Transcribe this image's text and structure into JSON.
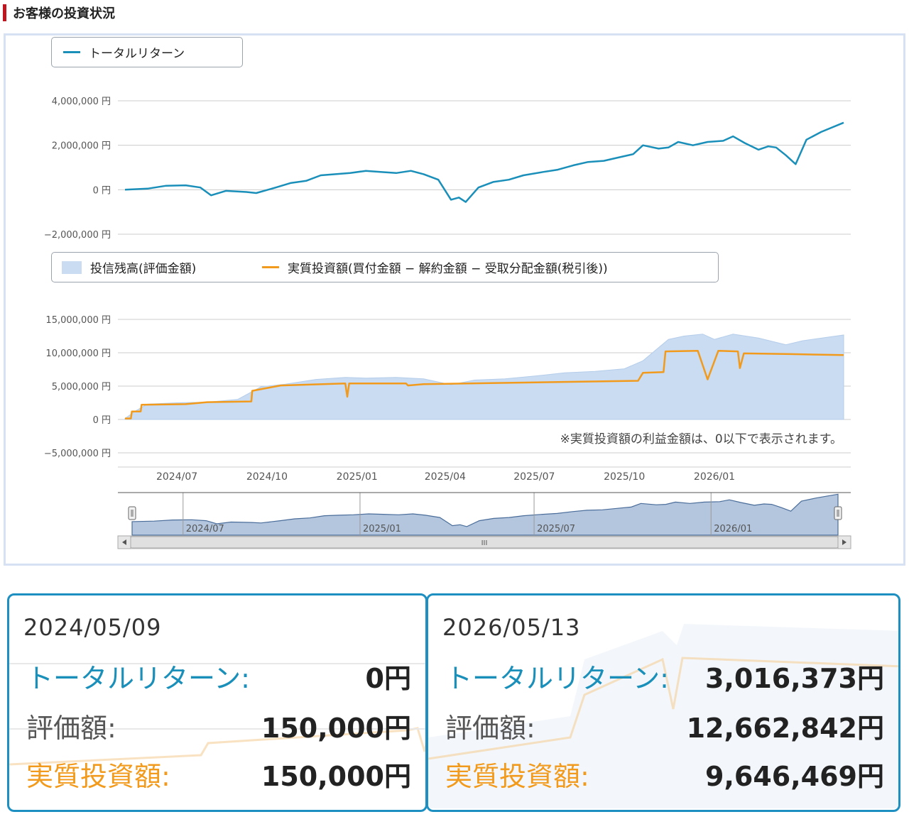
{
  "heading": {
    "title": "お客様の投資状況"
  },
  "colors": {
    "total_return": "#1a8fb9",
    "balance_fill": "#c9dcf2",
    "invested": "#f29a1c",
    "card_border": "#1d8fc0",
    "accent_red": "#c0141e"
  },
  "chart_data": [
    {
      "type": "line",
      "title": "",
      "legend": [
        "トータルリターン"
      ],
      "y_ticks": [
        "4,000,000 円",
        "2,000,000 円",
        "0 円",
        "−2,000,000 円"
      ],
      "ylim": [
        -2000000,
        4000000
      ],
      "x_range": [
        "2024-05-09",
        "2026-05-13"
      ],
      "series": [
        {
          "name": "トータルリターン",
          "points": [
            [
              "2024-05-09",
              0
            ],
            [
              "2024-06-01",
              50000
            ],
            [
              "2024-06-20",
              180000
            ],
            [
              "2024-07-10",
              200000
            ],
            [
              "2024-07-25",
              100000
            ],
            [
              "2024-08-05",
              -250000
            ],
            [
              "2024-08-20",
              -50000
            ],
            [
              "2024-09-10",
              -100000
            ],
            [
              "2024-09-20",
              -150000
            ],
            [
              "2024-10-10",
              100000
            ],
            [
              "2024-10-25",
              300000
            ],
            [
              "2024-11-10",
              400000
            ],
            [
              "2024-11-25",
              650000
            ],
            [
              "2024-12-10",
              700000
            ],
            [
              "2024-12-25",
              750000
            ],
            [
              "2025-01-10",
              850000
            ],
            [
              "2025-01-25",
              800000
            ],
            [
              "2025-02-10",
              750000
            ],
            [
              "2025-02-25",
              850000
            ],
            [
              "2025-03-10",
              700000
            ],
            [
              "2025-03-25",
              450000
            ],
            [
              "2025-04-07",
              -450000
            ],
            [
              "2025-04-15",
              -350000
            ],
            [
              "2025-04-22",
              -550000
            ],
            [
              "2025-05-05",
              100000
            ],
            [
              "2025-05-20",
              350000
            ],
            [
              "2025-06-05",
              450000
            ],
            [
              "2025-06-20",
              650000
            ],
            [
              "2025-07-10",
              800000
            ],
            [
              "2025-07-25",
              900000
            ],
            [
              "2025-08-10",
              1100000
            ],
            [
              "2025-08-25",
              1250000
            ],
            [
              "2025-09-10",
              1300000
            ],
            [
              "2025-09-25",
              1450000
            ],
            [
              "2025-10-10",
              1600000
            ],
            [
              "2025-10-20",
              2000000
            ],
            [
              "2025-11-05",
              1850000
            ],
            [
              "2025-11-15",
              1900000
            ],
            [
              "2025-11-25",
              2150000
            ],
            [
              "2025-12-10",
              2000000
            ],
            [
              "2025-12-25",
              2150000
            ],
            [
              "2026-01-10",
              2200000
            ],
            [
              "2026-01-20",
              2400000
            ],
            [
              "2026-02-01",
              2100000
            ],
            [
              "2026-02-15",
              1800000
            ],
            [
              "2026-02-25",
              1950000
            ],
            [
              "2026-03-05",
              1900000
            ],
            [
              "2026-03-15",
              1550000
            ],
            [
              "2026-03-25",
              1150000
            ],
            [
              "2026-04-05",
              2250000
            ],
            [
              "2026-04-20",
              2600000
            ],
            [
              "2026-05-13",
              3016373
            ]
          ]
        }
      ]
    },
    {
      "type": "area",
      "title": "",
      "legend": [
        "投信残高(評価金額)",
        "実質投資額(買付金額 − 解約金額 − 受取分配金額(税引後))"
      ],
      "y_ticks": [
        "15,000,000 円",
        "10,000,000 円",
        "5,000,000 円",
        "0 円",
        "−5,000,000 円"
      ],
      "ylim": [
        -5000000,
        15000000
      ],
      "x_ticks": [
        "2024/07",
        "2024/10",
        "2025/01",
        "2025/04",
        "2025/07",
        "2025/10",
        "2026/01"
      ],
      "note": "※実質投資額の利益金額は、0以下で表示されます。",
      "series": [
        {
          "name": "投信残高(評価金額)",
          "points": [
            [
              "2024-05-09",
              150000
            ],
            [
              "2024-05-20",
              1300000
            ],
            [
              "2024-06-01",
              2300000
            ],
            [
              "2024-07-01",
              2500000
            ],
            [
              "2024-08-01",
              2600000
            ],
            [
              "2024-09-01",
              3000000
            ],
            [
              "2024-09-25",
              4900000
            ],
            [
              "2024-10-20",
              5300000
            ],
            [
              "2024-11-20",
              6000000
            ],
            [
              "2024-12-20",
              6300000
            ],
            [
              "2025-01-10",
              6200000
            ],
            [
              "2025-02-10",
              6300000
            ],
            [
              "2025-03-10",
              6100000
            ],
            [
              "2025-04-07",
              5200000
            ],
            [
              "2025-05-01",
              5900000
            ],
            [
              "2025-06-01",
              6100000
            ],
            [
              "2025-07-01",
              6500000
            ],
            [
              "2025-08-01",
              7000000
            ],
            [
              "2025-09-01",
              7200000
            ],
            [
              "2025-10-01",
              7600000
            ],
            [
              "2025-10-20",
              8800000
            ],
            [
              "2025-11-15",
              12000000
            ],
            [
              "2025-12-01",
              12500000
            ],
            [
              "2025-12-20",
              12800000
            ],
            [
              "2026-01-01",
              12000000
            ],
            [
              "2026-01-20",
              12800000
            ],
            [
              "2026-02-15",
              12200000
            ],
            [
              "2026-03-15",
              11200000
            ],
            [
              "2026-04-01",
              11800000
            ],
            [
              "2026-05-13",
              12662842
            ]
          ]
        },
        {
          "name": "実質投資額",
          "points": [
            [
              "2024-05-09",
              150000
            ],
            [
              "2024-05-15",
              150000
            ],
            [
              "2024-05-16",
              1200000
            ],
            [
              "2024-05-25",
              1200000
            ],
            [
              "2024-05-26",
              2200000
            ],
            [
              "2024-07-10",
              2300000
            ],
            [
              "2024-08-01",
              2600000
            ],
            [
              "2024-09-15",
              2700000
            ],
            [
              "2024-09-16",
              4300000
            ],
            [
              "2024-10-15",
              5100000
            ],
            [
              "2024-12-20",
              5400000
            ],
            [
              "2024-12-22",
              3400000
            ],
            [
              "2024-12-24",
              5400000
            ],
            [
              "2025-02-20",
              5400000
            ],
            [
              "2025-02-22",
              5100000
            ],
            [
              "2025-03-10",
              5300000
            ],
            [
              "2025-10-15",
              5800000
            ],
            [
              "2025-10-20",
              7000000
            ],
            [
              "2025-11-10",
              7100000
            ],
            [
              "2025-11-12",
              10200000
            ],
            [
              "2025-12-15",
              10300000
            ],
            [
              "2025-12-25",
              6000000
            ],
            [
              "2026-01-05",
              10300000
            ],
            [
              "2026-01-25",
              10200000
            ],
            [
              "2026-01-27",
              7700000
            ],
            [
              "2026-01-31",
              9900000
            ],
            [
              "2026-03-20",
              9800000
            ],
            [
              "2026-05-13",
              9646469
            ]
          ]
        }
      ]
    },
    {
      "type": "area",
      "title": "",
      "navigator_ticks": [
        "2024/07",
        "2025/01",
        "2025/07",
        "2026/01"
      ],
      "series": [
        {
          "name": "トータルリターン",
          "ref": "chart_data.0"
        }
      ]
    }
  ],
  "cards": [
    {
      "date": "2024/05/09",
      "total_return_label": "トータルリターン:",
      "total_return_value": "0円",
      "valuation_label": "評価額:",
      "valuation_value": "150,000円",
      "invested_label": "実質投資額:",
      "invested_value": "150,000円"
    },
    {
      "date": "2026/05/13",
      "total_return_label": "トータルリターン:",
      "total_return_value": "3,016,373円",
      "valuation_label": "評価額:",
      "valuation_value": "12,662,842円",
      "invested_label": "実質投資額:",
      "invested_value": "9,646,469円"
    }
  ],
  "navigator": {
    "scroll_grip": "III"
  }
}
